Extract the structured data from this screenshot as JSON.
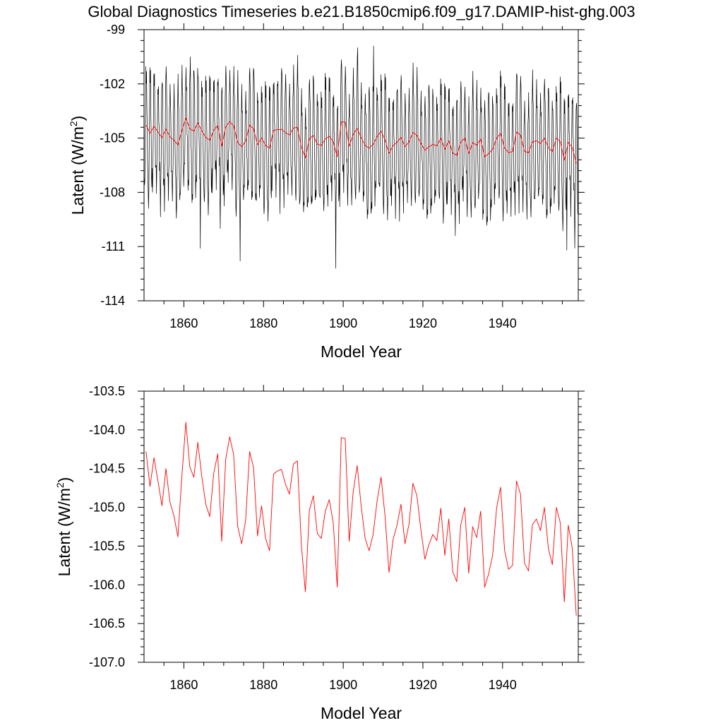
{
  "title": "Global Diagnostics Timeseries b.e21.B1850cmip6.f09_g17.DAMIP-hist-ghg.003",
  "colors": {
    "monthly": "#000000",
    "annual": "#ff0000",
    "axes": "#000000"
  },
  "chart_data": [
    {
      "type": "line",
      "xlabel": "Model Year",
      "ylabel": "Latent (W/m²)",
      "ylabel_base": "Latent (W/m",
      "ylabel_sup": "2",
      "ylabel_close": ")",
      "xlim": [
        1850,
        1959
      ],
      "ylim": [
        -114,
        -99
      ],
      "xticks": [
        1860,
        1880,
        1900,
        1920,
        1940
      ],
      "xtick_labels": [
        "1860",
        "1880",
        "1900",
        "1920",
        "1940"
      ],
      "yticks": [
        -114,
        -111,
        -108,
        -105,
        -102,
        -99
      ],
      "ytick_labels": [
        "-114",
        "-111",
        "-108",
        "-105",
        "-102",
        "-99"
      ],
      "series": [
        {
          "kind": "monthly",
          "color": "#000000",
          "annual_mean_ref": "annual",
          "monthly_anomaly_pattern": [
            -3.4,
            -4.1,
            -3.2,
            -1.2,
            1.3,
            3.1,
            3.4,
            2.9,
            1.6,
            -0.4,
            -2.2,
            -3.1
          ],
          "interannual_max_amplitude": 1.0,
          "highlighted_extremes": [
            {
              "x": 1874.1,
              "y": -111.8
            },
            {
              "x": 1898.1,
              "y": -112.2
            },
            {
              "x": 1864.1,
              "y": -111.1
            },
            {
              "x": 1956.1,
              "y": -111.2
            },
            {
              "x": 1907.6,
              "y": -99.9
            },
            {
              "x": 1903.6,
              "y": -100.0
            },
            {
              "x": 1861.6,
              "y": -100.5
            }
          ]
        },
        {
          "kind": "annual",
          "color": "#ff0000"
        }
      ]
    },
    {
      "type": "line",
      "xlabel": "Model Year",
      "ylabel": "Latent (W/m²)",
      "ylabel_base": "Latent (W/m",
      "ylabel_sup": "2",
      "ylabel_close": ")",
      "xlim": [
        1850,
        1959
      ],
      "ylim": [
        -107.0,
        -103.5
      ],
      "xticks": [
        1860,
        1880,
        1900,
        1920,
        1940
      ],
      "xtick_labels": [
        "1860",
        "1880",
        "1900",
        "1920",
        "1940"
      ],
      "yticks": [
        -107.0,
        -106.5,
        -106.0,
        -105.5,
        -105.0,
        -104.5,
        -104.0,
        -103.5
      ],
      "ytick_labels": [
        "-107.0",
        "-106.5",
        "-106.0",
        "-105.5",
        "-105.0",
        "-104.5",
        "-104.0",
        "-103.5"
      ],
      "series": [
        {
          "kind": "annual",
          "color": "#ff0000",
          "x": [
            1850.5,
            1851.5,
            1852.5,
            1853.5,
            1854.5,
            1855.5,
            1856.5,
            1857.5,
            1858.5,
            1859.5,
            1860.5,
            1861.5,
            1862.5,
            1863.5,
            1864.5,
            1865.5,
            1866.5,
            1867.5,
            1868.5,
            1869.5,
            1870.5,
            1871.5,
            1872.5,
            1873.5,
            1874.5,
            1875.5,
            1876.5,
            1877.5,
            1878.5,
            1879.5,
            1880.5,
            1881.5,
            1882.5,
            1883.5,
            1884.5,
            1885.5,
            1886.5,
            1887.5,
            1888.5,
            1889.5,
            1890.5,
            1891.5,
            1892.5,
            1893.5,
            1894.5,
            1895.5,
            1896.5,
            1897.5,
            1898.5,
            1899.5,
            1900.5,
            1901.5,
            1902.5,
            1903.5,
            1904.5,
            1905.5,
            1906.5,
            1907.5,
            1908.5,
            1909.5,
            1910.5,
            1911.5,
            1912.5,
            1913.5,
            1914.5,
            1915.5,
            1916.5,
            1917.5,
            1918.5,
            1919.5,
            1920.5,
            1921.5,
            1922.5,
            1923.5,
            1924.5,
            1925.5,
            1926.5,
            1927.5,
            1928.5,
            1929.5,
            1930.5,
            1931.5,
            1932.5,
            1933.5,
            1934.5,
            1935.5,
            1936.5,
            1937.5,
            1938.5,
            1939.5,
            1940.5,
            1941.5,
            1942.5,
            1943.5,
            1944.5,
            1945.5,
            1946.5,
            1947.5,
            1948.5,
            1949.5,
            1950.5,
            1951.5,
            1952.5,
            1953.5,
            1954.5,
            1955.5,
            1956.5,
            1957.5,
            1958.5
          ],
          "values": [
            -104.28,
            -104.73,
            -104.36,
            -104.66,
            -104.98,
            -104.5,
            -104.93,
            -105.11,
            -105.38,
            -104.6,
            -103.9,
            -104.48,
            -104.61,
            -104.16,
            -104.6,
            -104.96,
            -105.12,
            -104.56,
            -104.31,
            -105.44,
            -104.38,
            -104.09,
            -104.32,
            -105.24,
            -105.47,
            -105.17,
            -104.28,
            -104.49,
            -105.37,
            -104.98,
            -105.4,
            -105.56,
            -104.57,
            -104.53,
            -104.51,
            -104.7,
            -104.83,
            -104.44,
            -104.4,
            -105.49,
            -106.09,
            -105.04,
            -104.85,
            -105.34,
            -105.4,
            -105.05,
            -104.9,
            -105.2,
            -106.03,
            -104.1,
            -104.11,
            -105.44,
            -104.8,
            -104.46,
            -104.98,
            -105.4,
            -105.56,
            -105.35,
            -104.92,
            -104.61,
            -105.11,
            -105.84,
            -105.42,
            -105.23,
            -104.96,
            -105.47,
            -105.22,
            -104.69,
            -104.85,
            -105.29,
            -105.67,
            -105.48,
            -105.35,
            -105.43,
            -105.01,
            -105.62,
            -105.15,
            -105.83,
            -105.96,
            -105.23,
            -105.0,
            -105.85,
            -105.25,
            -105.39,
            -105.05,
            -106.03,
            -105.86,
            -105.62,
            -105.01,
            -104.74,
            -105.55,
            -105.8,
            -105.75,
            -104.66,
            -104.83,
            -105.72,
            -105.82,
            -105.22,
            -105.15,
            -105.3,
            -105.0,
            -105.53,
            -105.74,
            -105.0,
            -105.2,
            -106.22,
            -105.23,
            -105.53,
            -106.4
          ]
        }
      ]
    }
  ]
}
